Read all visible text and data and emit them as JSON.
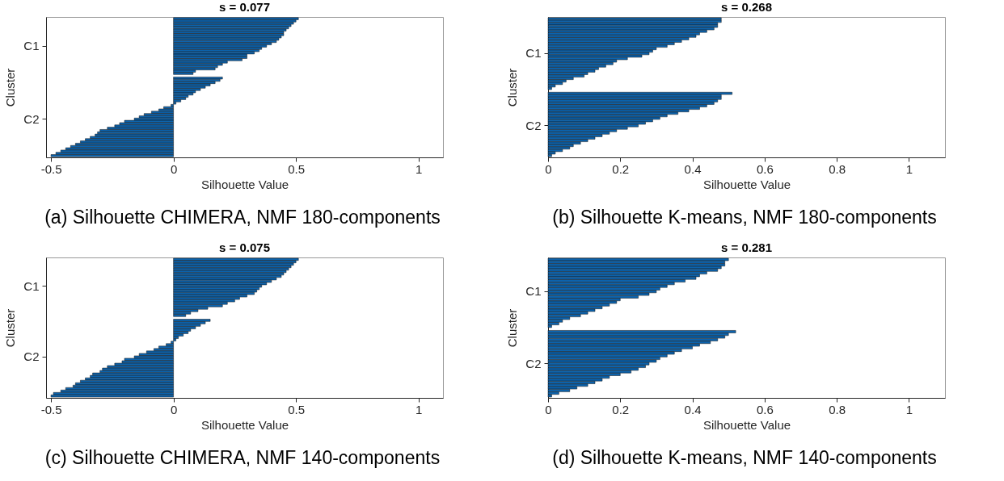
{
  "chart_data": [
    {
      "type": "bar",
      "orientation": "horizontal",
      "title": "s = 0.077",
      "xlabel": "Silhouette Value",
      "ylabel": "Cluster",
      "color": "#0c63ad",
      "xlim": [
        -0.52,
        1.1
      ],
      "xticks": [
        -0.5,
        0,
        0.5,
        1
      ],
      "categories": [
        null,
        null,
        null,
        null,
        null,
        null,
        null,
        null,
        null,
        null,
        null,
        null,
        "C1",
        null,
        null,
        null,
        null,
        null,
        null,
        null,
        null,
        null,
        null,
        null,
        null,
        null,
        null,
        null,
        null,
        null,
        null,
        null,
        null,
        null,
        null,
        null,
        null,
        null,
        null,
        null,
        null,
        null,
        null,
        null,
        "C2",
        null,
        null,
        null,
        null,
        null,
        null,
        null,
        null,
        null,
        null,
        null,
        null,
        null,
        null,
        null,
        null
      ],
      "values": [
        0.51,
        0.5,
        0.49,
        0.48,
        0.47,
        0.46,
        0.45,
        0.45,
        0.44,
        0.43,
        0.42,
        0.4,
        0.38,
        0.36,
        0.35,
        0.33,
        0.3,
        0.3,
        0.28,
        0.22,
        0.2,
        0.18,
        0.17,
        0.09,
        0.08,
        null,
        0.2,
        0.19,
        0.17,
        0.15,
        0.13,
        0.11,
        0.09,
        0.08,
        0.06,
        0.05,
        0.03,
        0.01,
        -0.01,
        -0.04,
        -0.06,
        -0.09,
        -0.12,
        -0.14,
        -0.16,
        -0.2,
        -0.22,
        -0.24,
        -0.27,
        -0.3,
        -0.31,
        -0.32,
        -0.34,
        -0.36,
        -0.38,
        -0.4,
        -0.42,
        -0.44,
        -0.46,
        -0.48,
        -0.5
      ],
      "annotations": [
        "(a) Silhouette CHIMERA, NMF 180-components"
      ]
    },
    {
      "type": "bar",
      "orientation": "horizontal",
      "title": "s = 0.268",
      "xlabel": "Silhouette Value",
      "ylabel": "Cluster",
      "color": "#0c63ad",
      "xlim": [
        0,
        1.1
      ],
      "xticks": [
        0,
        0.2,
        0.4,
        0.6,
        0.8,
        1
      ],
      "categories": [
        null,
        null,
        null,
        null,
        null,
        null,
        null,
        null,
        null,
        null,
        null,
        null,
        null,
        null,
        "C1",
        null,
        null,
        null,
        null,
        null,
        null,
        null,
        null,
        null,
        null,
        null,
        null,
        null,
        null,
        null,
        null,
        null,
        null,
        null,
        null,
        null,
        null,
        null,
        null,
        null,
        null,
        null,
        null,
        "C2",
        null,
        null,
        null,
        null,
        null,
        null,
        null,
        null,
        null,
        null,
        null,
        null
      ],
      "values": [
        0.48,
        0.48,
        0.47,
        0.47,
        0.46,
        0.44,
        0.42,
        0.41,
        0.39,
        0.37,
        0.35,
        0.33,
        0.3,
        0.29,
        0.28,
        0.26,
        0.22,
        0.19,
        0.18,
        0.16,
        0.14,
        0.13,
        0.11,
        0.1,
        0.07,
        0.05,
        0.04,
        0.02,
        0.01,
        null,
        0.51,
        0.48,
        0.48,
        0.47,
        0.46,
        0.44,
        0.42,
        0.39,
        0.36,
        0.33,
        0.31,
        0.29,
        0.27,
        0.25,
        0.22,
        0.19,
        0.17,
        0.15,
        0.13,
        0.11,
        0.09,
        0.07,
        0.06,
        0.04,
        0.02,
        0.01
      ],
      "annotations": [
        "(b) Silhouette K-means, NMF 180-components"
      ]
    },
    {
      "type": "bar",
      "orientation": "horizontal",
      "title": "s = 0.075",
      "xlabel": "Silhouette Value",
      "ylabel": "Cluster",
      "color": "#0c63ad",
      "xlim": [
        -0.52,
        1.1
      ],
      "xticks": [
        -0.5,
        0,
        0.5,
        1
      ],
      "categories": [
        null,
        null,
        null,
        null,
        null,
        null,
        null,
        null,
        null,
        null,
        null,
        "C1",
        null,
        null,
        null,
        null,
        null,
        null,
        null,
        null,
        null,
        null,
        null,
        null,
        null,
        null,
        null,
        null,
        null,
        null,
        null,
        null,
        null,
        null,
        null,
        null,
        null,
        null,
        null,
        null,
        "C2",
        null,
        null,
        null,
        null,
        null,
        null,
        null,
        null,
        null,
        null,
        null,
        null,
        null,
        null,
        null,
        null
      ],
      "values": [
        0.51,
        0.5,
        0.49,
        0.48,
        0.47,
        0.46,
        0.45,
        0.44,
        0.42,
        0.4,
        0.38,
        0.36,
        0.35,
        0.34,
        0.33,
        0.3,
        0.27,
        0.25,
        0.22,
        0.2,
        0.14,
        0.1,
        0.07,
        0.05,
        null,
        0.15,
        0.13,
        0.11,
        0.09,
        0.07,
        0.06,
        0.04,
        0.02,
        0.01,
        -0.01,
        -0.03,
        -0.06,
        -0.08,
        -0.11,
        -0.14,
        -0.16,
        -0.2,
        -0.21,
        -0.24,
        -0.27,
        -0.29,
        -0.3,
        -0.33,
        -0.34,
        -0.36,
        -0.38,
        -0.4,
        -0.41,
        -0.44,
        -0.46,
        -0.49,
        -0.5
      ],
      "annotations": [
        "(c) Silhouette CHIMERA, NMF 140-components"
      ]
    },
    {
      "type": "bar",
      "orientation": "horizontal",
      "title": "s = 0.281",
      "xlabel": "Silhouette Value",
      "ylabel": "Cluster",
      "color": "#0c63ad",
      "xlim": [
        0,
        1.1
      ],
      "xticks": [
        0,
        0.2,
        0.4,
        0.6,
        0.8,
        1
      ],
      "categories": [
        null,
        null,
        null,
        null,
        null,
        null,
        null,
        null,
        null,
        null,
        null,
        null,
        "C1",
        null,
        null,
        null,
        null,
        null,
        null,
        null,
        null,
        null,
        null,
        null,
        null,
        null,
        null,
        null,
        null,
        null,
        null,
        null,
        null,
        null,
        null,
        null,
        null,
        null,
        null,
        "C2",
        null,
        null,
        null,
        null,
        null,
        null,
        null,
        null,
        null,
        null,
        null,
        null
      ],
      "values": [
        0.5,
        0.49,
        0.49,
        0.48,
        0.47,
        0.44,
        0.42,
        0.41,
        0.38,
        0.35,
        0.33,
        0.31,
        0.3,
        0.28,
        0.25,
        0.2,
        0.19,
        0.17,
        0.15,
        0.13,
        0.11,
        0.09,
        0.06,
        0.04,
        0.03,
        0.01,
        null,
        0.52,
        0.5,
        0.49,
        0.47,
        0.45,
        0.42,
        0.4,
        0.37,
        0.35,
        0.33,
        0.31,
        0.3,
        0.28,
        0.27,
        0.25,
        0.23,
        0.2,
        0.17,
        0.15,
        0.13,
        0.11,
        0.08,
        0.06,
        0.03,
        0.01
      ],
      "annotations": [
        "(d) Silhouette K-means, NMF 140-components"
      ]
    }
  ]
}
